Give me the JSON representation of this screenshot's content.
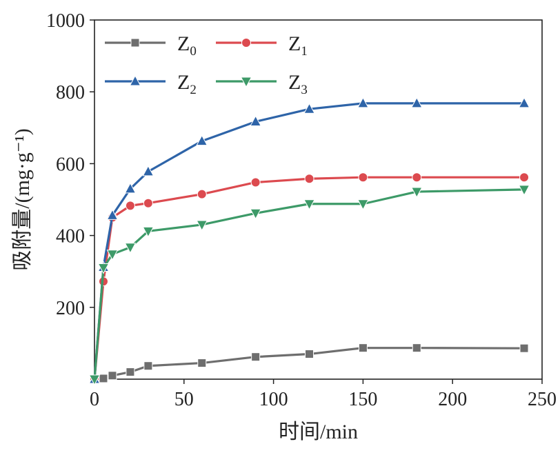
{
  "chart_data": {
    "type": "line",
    "title": "",
    "xlabel": "时间/min",
    "ylabel": "吸附量/(mg·g⁻¹)",
    "xlim": [
      0,
      250
    ],
    "ylim": [
      0,
      1000
    ],
    "x_ticks": [
      "0",
      "50",
      "100",
      "150",
      "200",
      "250"
    ],
    "y_ticks": [
      "200",
      "400",
      "600",
      "800",
      "1000"
    ],
    "grid": false,
    "legend_position": "top-left",
    "series": [
      {
        "name": "Z0",
        "base": "Z",
        "sub": "0",
        "color": "#6e6e6e",
        "marker": "square",
        "x": [
          0,
          5,
          10,
          20,
          30,
          60,
          90,
          120,
          150,
          180,
          240
        ],
        "y": [
          0,
          2,
          10,
          20,
          37,
          45,
          62,
          70,
          87,
          87,
          86
        ]
      },
      {
        "name": "Z1",
        "base": "Z",
        "sub": "1",
        "color": "#dc4a4f",
        "marker": "circle",
        "x": [
          0,
          5,
          10,
          20,
          30,
          60,
          90,
          120,
          150,
          180,
          240
        ],
        "y": [
          0,
          272,
          450,
          483,
          490,
          515,
          548,
          558,
          562,
          562,
          562
        ]
      },
      {
        "name": "Z2",
        "base": "Z",
        "sub": "2",
        "color": "#2e64a8",
        "marker": "triangle-up",
        "x": [
          0,
          5,
          10,
          20,
          30,
          60,
          90,
          120,
          150,
          180,
          240
        ],
        "y": [
          0,
          312,
          456,
          530,
          578,
          663,
          717,
          752,
          768,
          768,
          768
        ]
      },
      {
        "name": "Z3",
        "base": "Z",
        "sub": "3",
        "color": "#3d9a68",
        "marker": "triangle-down",
        "x": [
          0,
          5,
          10,
          20,
          30,
          60,
          90,
          120,
          150,
          180,
          240
        ],
        "y": [
          0,
          310,
          348,
          367,
          412,
          430,
          462,
          488,
          488,
          522,
          528
        ]
      }
    ]
  }
}
